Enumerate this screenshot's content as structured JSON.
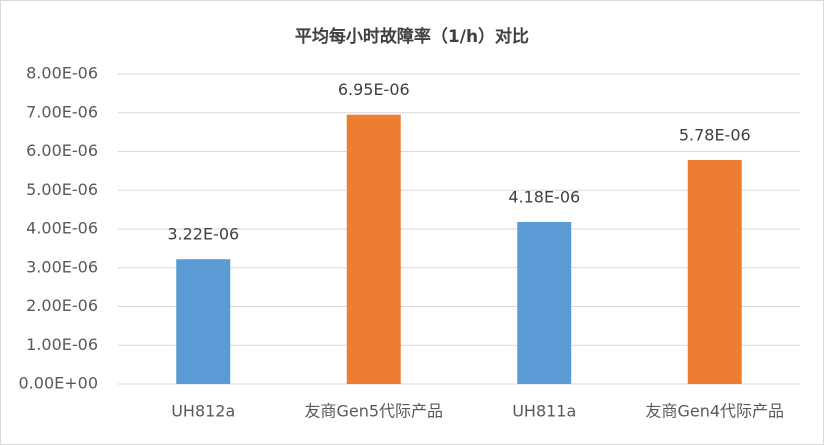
{
  "chart_data": {
    "type": "bar",
    "title": "平均每小时故障率（1/h）对比",
    "categories": [
      "UH812a",
      "友商Gen5代际产品",
      "UH811a",
      "友商Gen4代际产品"
    ],
    "values": [
      3.22e-06,
      6.95e-06,
      4.18e-06,
      5.78e-06
    ],
    "value_labels": [
      "3.22E-06",
      "6.95E-06",
      "4.18E-06",
      "5.78E-06"
    ],
    "colors": [
      "#5b9bd5",
      "#ed7d31",
      "#5b9bd5",
      "#ed7d31"
    ],
    "ylim": [
      0,
      8e-06
    ],
    "yticks": [
      {
        "value": 0,
        "label": "0.00E+00"
      },
      {
        "value": 1e-06,
        "label": "1.00E-06"
      },
      {
        "value": 2e-06,
        "label": "2.00E-06"
      },
      {
        "value": 3e-06,
        "label": "3.00E-06"
      },
      {
        "value": 4e-06,
        "label": "4.00E-06"
      },
      {
        "value": 5e-06,
        "label": "5.00E-06"
      },
      {
        "value": 6e-06,
        "label": "6.00E-06"
      },
      {
        "value": 7e-06,
        "label": "7.00E-06"
      },
      {
        "value": 8e-06,
        "label": "8.00E-06"
      }
    ],
    "grid": true
  }
}
